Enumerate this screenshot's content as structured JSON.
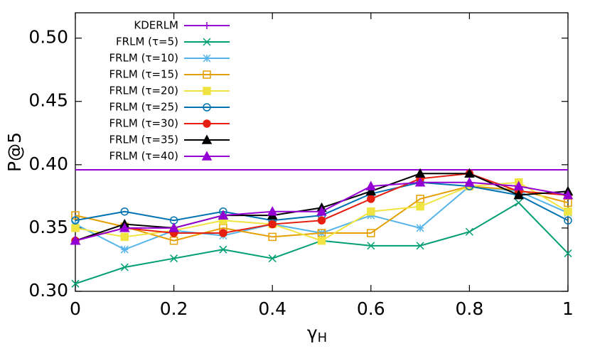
{
  "chart_data": {
    "type": "line",
    "ylabel": "P@5",
    "xlabel_symbol": "γ",
    "xlabel_subscript": "H",
    "xlim": [
      0,
      1
    ],
    "ylim": [
      0.3,
      0.52
    ],
    "xticks": [
      0,
      0.2,
      0.4,
      0.6,
      0.8,
      1
    ],
    "yticks": [
      {
        "value": 0.3,
        "label": "0.30"
      },
      {
        "value": 0.35,
        "label": "0.35"
      },
      {
        "value": 0.4,
        "label": "0.40"
      },
      {
        "value": 0.45,
        "label": "0.45"
      },
      {
        "value": 0.5,
        "label": "0.50"
      }
    ],
    "legend": "top-left",
    "x": [
      0,
      0.1,
      0.2,
      0.3,
      0.4,
      0.5,
      0.6,
      0.7,
      0.8,
      0.9,
      1
    ],
    "series": [
      {
        "name": "KDERLM",
        "color": "#9400d3",
        "marker": "plus",
        "show_points": false,
        "values": [
          0.396,
          0.396,
          0.396,
          0.396,
          0.396,
          0.396,
          0.396,
          0.396,
          0.396,
          0.396,
          0.396
        ]
      },
      {
        "name": "FRLM (τ=5)",
        "color": "#009e73",
        "marker": "cross",
        "show_points": true,
        "values": [
          0.306,
          0.319,
          0.326,
          0.333,
          0.326,
          0.34,
          0.336,
          0.336,
          0.347,
          0.37,
          0.33
        ]
      },
      {
        "name": "FRLM (τ=10)",
        "color": "#56b4e9",
        "marker": "star",
        "show_points": true,
        "values": [
          0.353,
          0.333,
          0.348,
          0.344,
          0.353,
          0.346,
          0.36,
          0.35,
          0.383,
          0.379,
          0.362
        ]
      },
      {
        "name": "FRLM (τ=15)",
        "color": "#e69f00",
        "marker": "square-open",
        "show_points": true,
        "values": [
          0.36,
          0.351,
          0.34,
          0.35,
          0.343,
          0.346,
          0.346,
          0.373,
          0.383,
          0.38,
          0.37
        ]
      },
      {
        "name": "FRLM (τ=20)",
        "color": "#f0e442",
        "marker": "square",
        "show_points": true,
        "values": [
          0.35,
          0.343,
          0.348,
          0.356,
          0.353,
          0.34,
          0.363,
          0.367,
          0.383,
          0.386,
          0.363
        ]
      },
      {
        "name": "FRLM (τ=25)",
        "color": "#0072b2",
        "marker": "circle-open",
        "show_points": true,
        "values": [
          0.356,
          0.363,
          0.356,
          0.363,
          0.356,
          0.36,
          0.377,
          0.386,
          0.383,
          0.376,
          0.356
        ]
      },
      {
        "name": "FRLM (τ=30)",
        "color": "#e51e10",
        "marker": "circle",
        "show_points": true,
        "values": [
          0.34,
          0.35,
          0.346,
          0.346,
          0.353,
          0.356,
          0.373,
          0.389,
          0.393,
          0.379,
          0.376
        ]
      },
      {
        "name": "FRLM (τ=35)",
        "color": "#000000",
        "marker": "triangle",
        "show_points": true,
        "values": [
          0.34,
          0.353,
          0.35,
          0.36,
          0.36,
          0.366,
          0.379,
          0.393,
          0.393,
          0.376,
          0.379
        ]
      },
      {
        "name": "FRLM (τ=40)",
        "color": "#9400d3",
        "marker": "triangle",
        "show_points": true,
        "values": [
          0.34,
          0.35,
          0.35,
          0.36,
          0.363,
          0.363,
          0.383,
          0.386,
          0.386,
          0.383,
          0.376
        ]
      }
    ]
  }
}
